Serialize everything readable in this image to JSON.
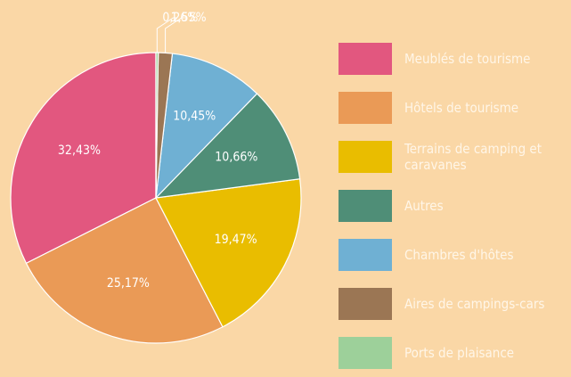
{
  "chart_data": {
    "type": "pie",
    "categories": [
      "Meublés de tourisme",
      "Hôtels de tourisme",
      "Terrains de camping et caravanes",
      "Autres",
      "Chambres d'hôtes",
      "Aires de campings-cars",
      "Ports de plaisance"
    ],
    "values": [
      32.43,
      25.17,
      19.47,
      10.66,
      10.45,
      1.55,
      0.26
    ],
    "value_labels": [
      "32,43%",
      "25,17%",
      "19,47%",
      "10,66%",
      "10,45%",
      "1,55%",
      "0,26%"
    ],
    "colors": [
      "#e2577f",
      "#ea9a56",
      "#e9bd00",
      "#4f8e77",
      "#6fb0d3",
      "#9b7654",
      "#9dd09a"
    ]
  }
}
